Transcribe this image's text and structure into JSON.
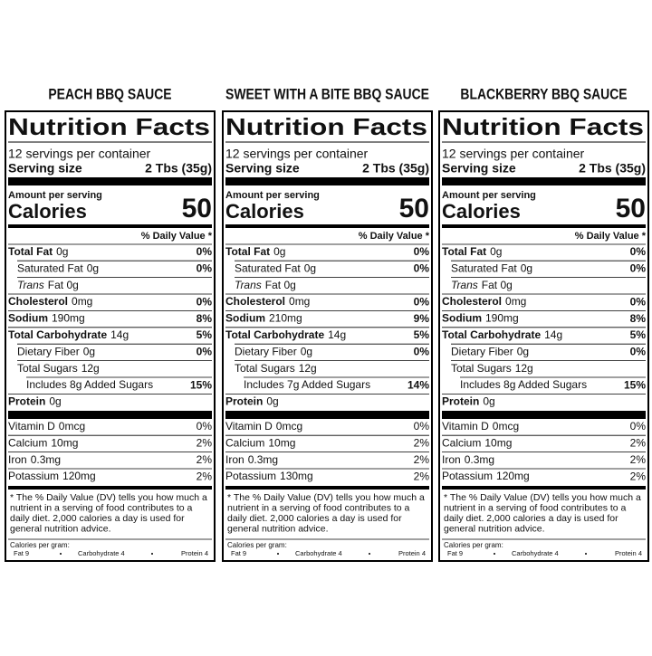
{
  "labels": [
    {
      "product": "PEACH BBQ SAUCE",
      "title": "Nutrition Facts",
      "servings": "12 servings per container",
      "serving_size_label": "Serving size",
      "serving_size": "2 Tbs (35g)",
      "amount_per_serving": "Amount per serving",
      "calories_label": "Calories",
      "calories": "50",
      "dv_header": "% Daily Value *",
      "rows": [
        {
          "label": "Total Fat",
          "amount": "0g",
          "dv": "0%"
        },
        {
          "label": "Saturated Fat",
          "amount": "0g",
          "dv": "0%"
        },
        {
          "label": "Trans",
          "amount": "Fat 0g"
        },
        {
          "label": "Cholesterol",
          "amount": "0mg",
          "dv": "0%"
        },
        {
          "label": "Sodium",
          "amount": "190mg",
          "dv": "8%"
        },
        {
          "label": "Total Carbohydrate",
          "amount": "14g",
          "dv": "5%"
        },
        {
          "label": "Dietary Fiber",
          "amount": "0g",
          "dv": "0%"
        },
        {
          "label": "Total Sugars",
          "amount": "12g"
        },
        {
          "label": "Includes 8g Added Sugars",
          "dv": "15%"
        },
        {
          "label": "Protein",
          "amount": "0g"
        },
        {
          "label": "Vitamin D",
          "amount": "0mcg",
          "dv": "0%"
        },
        {
          "label": "Calcium",
          "amount": "10mg",
          "dv": "2%"
        },
        {
          "label": "Iron",
          "amount": "0.3mg",
          "dv": "2%"
        },
        {
          "label": "Potassium",
          "amount": "120mg",
          "dv": "2%"
        }
      ],
      "footnote": [
        "* The % Daily Value (DV) tells you how much a",
        "nutrient in a serving of food contributes to a",
        "daily diet. 2,000 calories a day is used for",
        "general nutrition advice."
      ],
      "calories_per_gram": "Calories per gram:",
      "fat": "Fat 9",
      "carbohydrate": "Carbohydrate 4",
      "protein": "Protein 4"
    },
    {
      "product": "SWEET WITH A BITE BBQ SAUCE",
      "title": "Nutrition Facts",
      "servings": "12 servings per container",
      "serving_size_label": "Serving size",
      "serving_size": "2 Tbs (35g)",
      "amount_per_serving": "Amount per serving",
      "calories_label": "Calories",
      "calories": "50",
      "dv_header": "% Daily Value *",
      "rows": [
        {
          "label": "Total Fat",
          "amount": "0g",
          "dv": "0%"
        },
        {
          "label": "Saturated Fat",
          "amount": "0g",
          "dv": "0%"
        },
        {
          "label": "Trans",
          "amount": "Fat 0g"
        },
        {
          "label": "Cholesterol",
          "amount": "0mg",
          "dv": "0%"
        },
        {
          "label": "Sodium",
          "amount": "210mg",
          "dv": "9%"
        },
        {
          "label": "Total Carbohydrate",
          "amount": "14g",
          "dv": "5%"
        },
        {
          "label": "Dietary Fiber",
          "amount": "0g",
          "dv": "0%"
        },
        {
          "label": "Total Sugars",
          "amount": "12g"
        },
        {
          "label": "Includes 7g Added Sugars",
          "dv": "14%"
        },
        {
          "label": "Protein",
          "amount": "0g"
        },
        {
          "label": "Vitamin D",
          "amount": "0mcg",
          "dv": "0%"
        },
        {
          "label": "Calcium",
          "amount": "10mg",
          "dv": "2%"
        },
        {
          "label": "Iron",
          "amount": "0.3mg",
          "dv": "2%"
        },
        {
          "label": "Potassium",
          "amount": "130mg",
          "dv": "2%"
        }
      ],
      "footnote": [
        "* The % Daily Value (DV) tells you how much a",
        "nutrient in a serving of food contributes to a",
        "daily diet. 2,000 calories a day is used for",
        "general nutrition advice."
      ],
      "calories_per_gram": "Calories per gram:",
      "fat": "Fat 9",
      "carbohydrate": "Carbohydrate 4",
      "protein": "Protein 4"
    },
    {
      "product": "BLACKBERRY BBQ SAUCE",
      "title": "Nutrition Facts",
      "servings": "12 servings per container",
      "serving_size_label": "Serving size",
      "serving_size": "2 Tbs (35g)",
      "amount_per_serving": "Amount per serving",
      "calories_label": "Calories",
      "calories": "50",
      "dv_header": "% Daily Value *",
      "rows": [
        {
          "label": "Total Fat",
          "amount": "0g",
          "dv": "0%"
        },
        {
          "label": "Saturated Fat",
          "amount": "0g",
          "dv": "0%"
        },
        {
          "label": "Trans",
          "amount": "Fat 0g"
        },
        {
          "label": "Cholesterol",
          "amount": "0mg",
          "dv": "0%"
        },
        {
          "label": "Sodium",
          "amount": "190mg",
          "dv": "8%"
        },
        {
          "label": "Total Carbohydrate",
          "amount": "14g",
          "dv": "5%"
        },
        {
          "label": "Dietary Fiber",
          "amount": "0g",
          "dv": "0%"
        },
        {
          "label": "Total Sugars",
          "amount": "12g"
        },
        {
          "label": "Includes 8g Added Sugars",
          "dv": "15%"
        },
        {
          "label": "Protein",
          "amount": "0g"
        },
        {
          "label": "Vitamin D",
          "amount": "0mcg",
          "dv": "0%"
        },
        {
          "label": "Calcium",
          "amount": "10mg",
          "dv": "2%"
        },
        {
          "label": "Iron",
          "amount": "0.3mg",
          "dv": "2%"
        },
        {
          "label": "Potassium",
          "amount": "120mg",
          "dv": "2%"
        }
      ],
      "footnote": [
        "* The % Daily Value (DV) tells you how much a",
        "nutrient in a serving of food contributes to a",
        "daily diet. 2,000 calories a day is used for",
        "general nutrition advice."
      ],
      "calories_per_gram": "Calories per gram:",
      "fat": "Fat 9",
      "carbohydrate": "Carbohydrate 4",
      "protein": "Protein 4"
    }
  ]
}
